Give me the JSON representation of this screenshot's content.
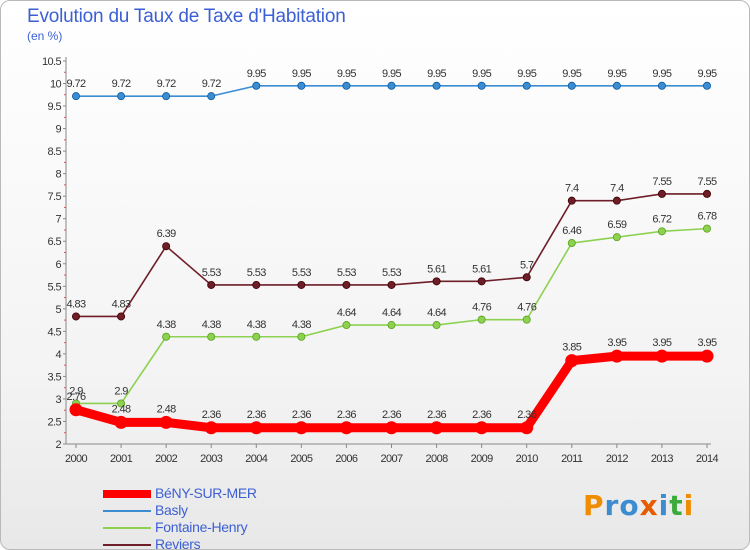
{
  "header": {
    "title": "Evolution du Taux de Taxe d'Habitation",
    "subtitle": "(en %)"
  },
  "logo": {
    "text": "Proxiti",
    "colors": [
      "#f08c00",
      "#3c8cd2",
      "#3c8cd2",
      "#e65a00",
      "#3c8cd2",
      "#3caa3c",
      "#f08c00"
    ]
  },
  "chart_data": {
    "type": "line",
    "x": [
      "2000",
      "2001",
      "2002",
      "2003",
      "2004",
      "2005",
      "2006",
      "2007",
      "2008",
      "2009",
      "2010",
      "2011",
      "2012",
      "2013",
      "2014"
    ],
    "ylim": [
      2,
      10.5
    ],
    "yticks": [
      "2",
      "2.5",
      "3",
      "3.5",
      "4",
      "4.5",
      "5",
      "5.5",
      "6",
      "6.5",
      "7",
      "7.5",
      "8",
      "8.5",
      "9",
      "9.5",
      "10",
      "10.5"
    ],
    "grid": false,
    "legend_position": "bottom-left",
    "series": [
      {
        "name": "BéNY-SUR-MER",
        "color": "#ff0000",
        "values": [
          2.76,
          2.48,
          2.48,
          2.36,
          2.36,
          2.36,
          2.36,
          2.36,
          2.36,
          2.36,
          2.36,
          3.85,
          3.95,
          3.95,
          3.95
        ],
        "labels": [
          "2.76",
          "2.48",
          "2.48",
          "2.36",
          "2.36",
          "2.36",
          "2.36",
          "2.36",
          "2.36",
          "2.36",
          "2.36",
          "3.85",
          "3.95",
          "3.95",
          "3.95"
        ]
      },
      {
        "name": "Basly",
        "color": "#3c8cd2",
        "values": [
          9.72,
          9.72,
          9.72,
          9.72,
          9.95,
          9.95,
          9.95,
          9.95,
          9.95,
          9.95,
          9.95,
          9.95,
          9.95,
          9.95,
          9.95
        ],
        "labels": [
          "9.72",
          "9.72",
          "9.72",
          "9.72",
          "9.95",
          "9.95",
          "9.95",
          "9.95",
          "9.95",
          "9.95",
          "9.95",
          "9.95",
          "9.95",
          "9.95",
          "9.95"
        ]
      },
      {
        "name": "Fontaine-Henry",
        "color": "#8cd250",
        "values": [
          2.9,
          2.9,
          4.38,
          4.38,
          4.38,
          4.38,
          4.64,
          4.64,
          4.64,
          4.76,
          4.76,
          6.46,
          6.59,
          6.72,
          6.78
        ],
        "labels": [
          "2.9",
          "2.9",
          "4.38",
          "4.38",
          "4.38",
          "4.38",
          "4.64",
          "4.64",
          "4.64",
          "4.76",
          "4.76",
          "6.46",
          "6.59",
          "6.72",
          "6.78"
        ]
      },
      {
        "name": "Reviers",
        "color": "#6e1e28",
        "values": [
          4.83,
          4.83,
          6.39,
          5.53,
          5.53,
          5.53,
          5.53,
          5.53,
          5.61,
          5.61,
          5.7,
          7.4,
          7.4,
          7.55,
          7.55
        ],
        "labels": [
          "4.83",
          "4.83",
          "6.39",
          "5.53",
          "5.53",
          "5.53",
          "5.53",
          "5.53",
          "5.61",
          "5.61",
          "5.7",
          "7.4",
          "7.4",
          "7.55",
          "7.55"
        ]
      }
    ]
  }
}
